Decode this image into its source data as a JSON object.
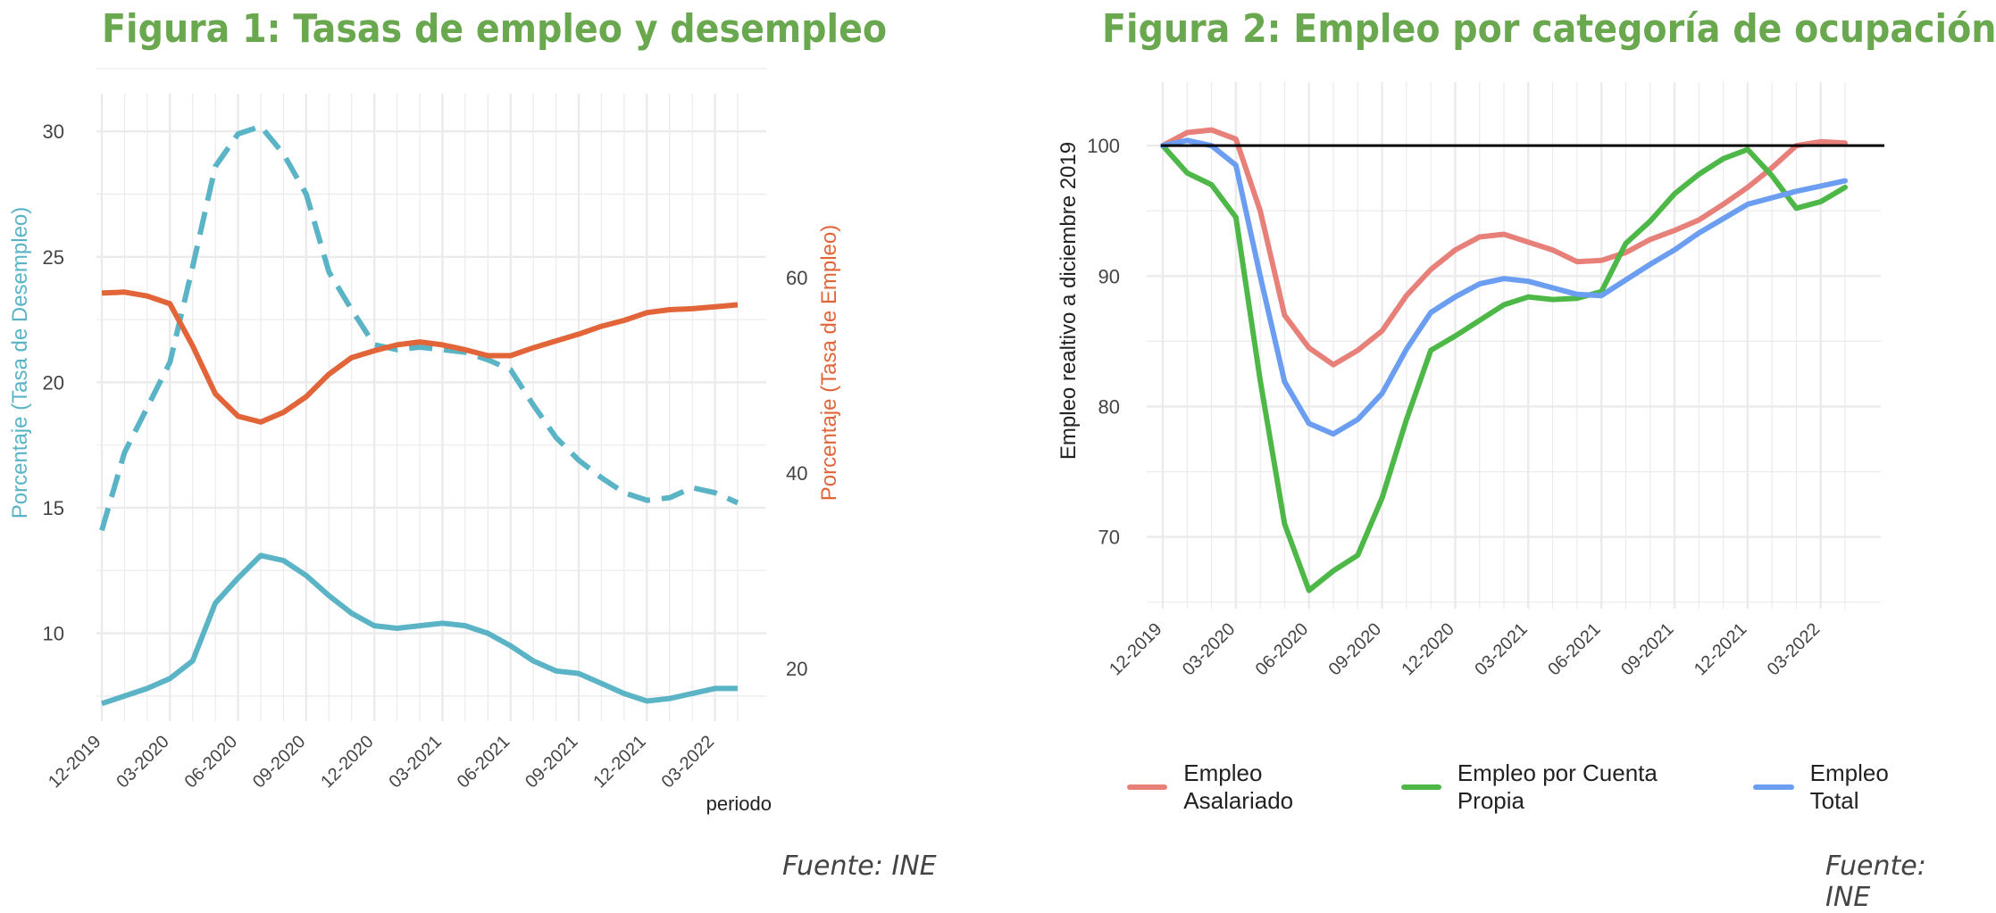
{
  "figure1": {
    "title": "Figura 1: Tasas de empleo y desempleo",
    "source": "Fuente: INE",
    "chart_data": {
      "type": "line",
      "title": "Figura 1: Tasas de empleo y desempleo",
      "xlabel": "periodo",
      "ylabel": "Porcentaje (Tasa de Desempleo)",
      "y2label": "Porcentaje (Tasa de Empleo)",
      "ylim": [
        6.5,
        31.5
      ],
      "y2lim": [
        14.6,
        78.8
      ],
      "yticks": [
        10,
        15,
        20,
        25,
        30
      ],
      "y2ticks": [
        20,
        40,
        60
      ],
      "grid": true,
      "colors": {
        "axis_left": "#5ab4c6",
        "axis_right": "#e2653a",
        "grid": "#ebebeb"
      },
      "x_labels": [
        "12-2019",
        "03-2020",
        "06-2020",
        "09-2020",
        "12-2020",
        "03-2021",
        "06-2021",
        "09-2021",
        "12-2021",
        "03-2022"
      ],
      "x": [
        "12-2019",
        "01-2020",
        "02-2020",
        "03-2020",
        "04-2020",
        "05-2020",
        "06-2020",
        "07-2020",
        "08-2020",
        "09-2020",
        "10-2020",
        "11-2020",
        "12-2020",
        "01-2021",
        "02-2021",
        "03-2021",
        "04-2021",
        "05-2021",
        "06-2021",
        "07-2021",
        "08-2021",
        "09-2021",
        "10-2021",
        "11-2021",
        "12-2021",
        "01-2022",
        "02-2022",
        "03-2022",
        "04-2022"
      ],
      "series": [
        {
          "color": "#5ab4c6",
          "axis": "left",
          "dash": "dashed",
          "values": [
            14.1,
            17.2,
            19.0,
            20.8,
            24.6,
            28.6,
            29.9,
            30.2,
            29.1,
            27.5,
            24.4,
            22.9,
            21.5,
            21.3,
            21.4,
            21.3,
            21.2,
            20.9,
            20.5,
            19.1,
            17.8,
            16.9,
            16.2,
            15.6,
            15.3,
            15.4,
            15.8,
            15.6,
            15.2
          ]
        },
        {
          "color": "#5ab4c6",
          "axis": "left",
          "dash": "solid",
          "values": [
            7.2,
            7.5,
            7.8,
            8.2,
            8.9,
            11.2,
            12.2,
            13.1,
            12.9,
            12.3,
            11.5,
            10.8,
            10.3,
            10.2,
            10.3,
            10.4,
            10.3,
            10.0,
            9.5,
            8.9,
            8.5,
            8.4,
            8.0,
            7.6,
            7.3,
            7.4,
            7.6,
            7.8,
            7.8
          ]
        },
        {
          "color": "#e2653a",
          "axis": "right",
          "dash": "solid",
          "values": [
            58.4,
            58.5,
            58.1,
            57.3,
            53.0,
            48.1,
            45.8,
            45.2,
            46.2,
            47.8,
            50.1,
            51.8,
            52.5,
            53.1,
            53.4,
            53.1,
            52.6,
            52.0,
            52.0,
            52.8,
            53.5,
            54.2,
            55.0,
            55.6,
            56.4,
            56.7,
            56.8,
            57.0,
            57.2
          ]
        }
      ]
    }
  },
  "figure2": {
    "title": "Figura 2: Empleo por categoría de ocupación",
    "source": "Fuente: INE",
    "chart_data": {
      "type": "line",
      "title": "Figura 2: Empleo por categoría de ocupación",
      "xlabel": "",
      "ylabel": "Empleo realtivo a diciembre 2019",
      "ylim": [
        64.5,
        103.5
      ],
      "yticks": [
        70,
        80,
        90,
        100
      ],
      "reference_line": 100,
      "grid": true,
      "legend_position": "bottom",
      "colors": {
        "reference": "#000000",
        "grid": "#ebebeb"
      },
      "x_labels": [
        "12-2019",
        "03-2020",
        "06-2020",
        "09-2020",
        "12-2020",
        "03-2021",
        "06-2021",
        "09-2021",
        "12-2021",
        "03-2022"
      ],
      "x": [
        "12-2019",
        "01-2020",
        "02-2020",
        "03-2020",
        "04-2020",
        "05-2020",
        "06-2020",
        "07-2020",
        "08-2020",
        "09-2020",
        "10-2020",
        "11-2020",
        "12-2020",
        "01-2021",
        "02-2021",
        "03-2021",
        "04-2021",
        "05-2021",
        "06-2021",
        "07-2021",
        "08-2021",
        "09-2021",
        "10-2021",
        "11-2021",
        "12-2021",
        "01-2022",
        "02-2022",
        "03-2022",
        "04-2022"
      ],
      "series": [
        {
          "name": "Empleo Asalariado",
          "color": "#e8807a",
          "values": [
            100.0,
            101.0,
            101.2,
            100.5,
            95.0,
            87.0,
            84.5,
            83.2,
            84.3,
            85.8,
            88.5,
            90.5,
            92.0,
            93.0,
            93.2,
            92.6,
            92.0,
            91.1,
            91.2,
            91.8,
            92.8,
            93.5,
            94.3,
            95.5,
            96.8,
            98.3,
            100.0,
            100.3,
            100.2
          ]
        },
        {
          "name": "Empleo por Cuenta Propia",
          "color": "#4db848",
          "values": [
            100.0,
            97.9,
            97.0,
            94.5,
            82.0,
            71.0,
            65.9,
            67.4,
            68.6,
            73.0,
            79.0,
            84.3,
            85.4,
            86.6,
            87.8,
            88.4,
            88.2,
            88.3,
            88.8,
            92.5,
            94.2,
            96.3,
            97.8,
            99.0,
            99.7,
            97.7,
            95.2,
            95.7,
            96.8
          ]
        },
        {
          "name": "Empleo Total",
          "color": "#6b9ef0",
          "values": [
            100.0,
            100.4,
            100.0,
            98.5,
            90.0,
            81.9,
            78.7,
            77.9,
            79.0,
            81.0,
            84.4,
            87.2,
            88.4,
            89.4,
            89.8,
            89.6,
            89.1,
            88.6,
            88.5,
            89.7,
            90.9,
            92.0,
            93.3,
            94.4,
            95.5,
            96.0,
            96.5,
            96.9,
            97.3
          ]
        }
      ]
    }
  }
}
